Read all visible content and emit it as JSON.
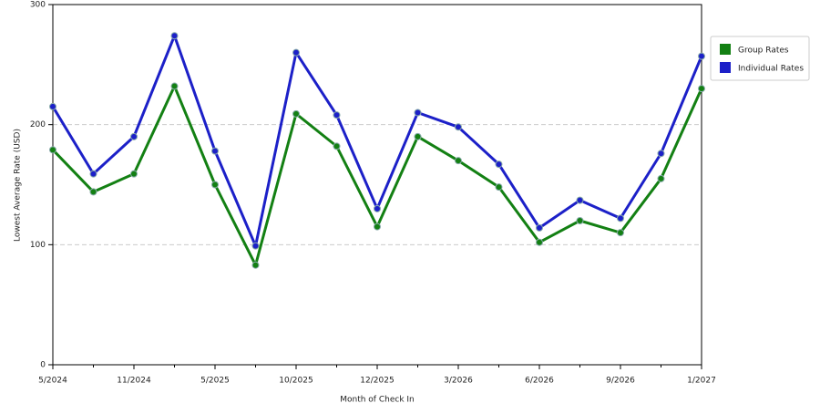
{
  "chart_data": {
    "type": "line",
    "x_label": "Month of Check In",
    "y_label": "Lowest Average Rate (USD)",
    "categories": [
      "5/2024",
      null,
      "11/2024",
      null,
      "5/2025",
      null,
      "10/2025",
      null,
      "12/2025",
      null,
      "3/2026",
      null,
      "6/2026",
      null,
      "9/2026",
      null,
      "1/2027"
    ],
    "series": [
      {
        "name": "Group Rates",
        "color": "#138013",
        "values": [
          179,
          144,
          159,
          232,
          150,
          83,
          209,
          182,
          115,
          190,
          170,
          148,
          102,
          120,
          110,
          155,
          230
        ]
      },
      {
        "name": "Individual Rates",
        "color": "#1c20c8",
        "values": [
          215,
          159,
          190,
          274,
          178,
          99,
          260,
          208,
          130,
          210,
          198,
          167,
          114,
          137,
          122,
          176,
          257
        ]
      }
    ],
    "ylim": [
      0,
      300
    ],
    "yticks": [
      0,
      100,
      200,
      300
    ],
    "grid": true,
    "legend": "top-right"
  }
}
